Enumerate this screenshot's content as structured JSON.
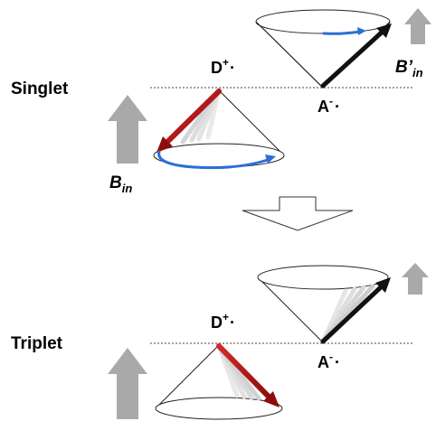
{
  "singlet": {
    "state_label": "Singlet",
    "donor_label": "D",
    "donor_charge": "+",
    "donor_dot": "·",
    "acceptor_label": "A",
    "acceptor_charge": "-",
    "acceptor_dot": "·",
    "field_in_label": "B",
    "field_in_sub": "in",
    "field_prime_label": "B’",
    "field_prime_sub": "in"
  },
  "triplet": {
    "state_label": "Triplet",
    "donor_label": "D",
    "donor_charge": "+",
    "donor_dot": "·",
    "acceptor_label": "A",
    "acceptor_charge": "-",
    "acceptor_dot": "·"
  },
  "colors": {
    "donor_spin": "#b81414",
    "acceptor_spin": "#111111",
    "precession_arrow": "#2a6fd6",
    "field_arrow": "#a9a9a9",
    "transition_arrow_fill": "#ffffff",
    "ghost_arrow": "#d8d8d8"
  }
}
